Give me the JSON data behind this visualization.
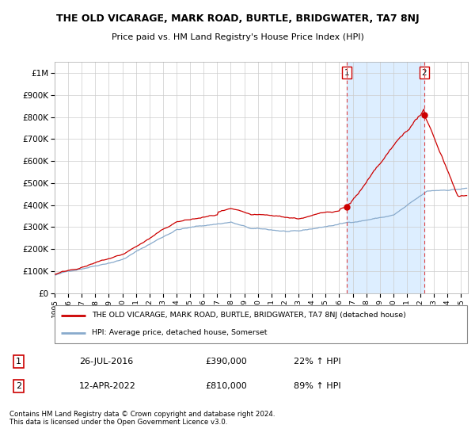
{
  "title": "THE OLD VICARAGE, MARK ROAD, BURTLE, BRIDGWATER, TA7 8NJ",
  "subtitle": "Price paid vs. HM Land Registry's House Price Index (HPI)",
  "ylabel_ticks": [
    "£0",
    "£100K",
    "£200K",
    "£300K",
    "£400K",
    "£500K",
    "£600K",
    "£700K",
    "£800K",
    "£900K",
    "£1M"
  ],
  "ytick_values": [
    0,
    100000,
    200000,
    300000,
    400000,
    500000,
    600000,
    700000,
    800000,
    900000,
    1000000
  ],
  "ylim": [
    0,
    1050000
  ],
  "xlim": [
    1995.0,
    2025.5
  ],
  "legend_line1": "THE OLD VICARAGE, MARK ROAD, BURTLE, BRIDGWATER, TA7 8NJ (detached house)",
  "legend_line2": "HPI: Average price, detached house, Somerset",
  "sale1_date": "26-JUL-2016",
  "sale1_price": "£390,000",
  "sale1_hpi": "22% ↑ HPI",
  "sale1_label": "1",
  "sale1_x": 2016.56,
  "sale1_y": 390000,
  "sale2_date": "12-APR-2022",
  "sale2_price": "£810,000",
  "sale2_hpi": "89% ↑ HPI",
  "sale2_label": "2",
  "sale2_x": 2022.28,
  "sale2_y": 810000,
  "red_line_color": "#cc0000",
  "blue_line_color": "#88aacc",
  "shade_color": "#ddeeff",
  "dashed_line_color": "#dd4444",
  "grid_color": "#cccccc",
  "background_color": "#ffffff",
  "copyright_text": "Contains HM Land Registry data © Crown copyright and database right 2024.\nThis data is licensed under the Open Government Licence v3.0."
}
